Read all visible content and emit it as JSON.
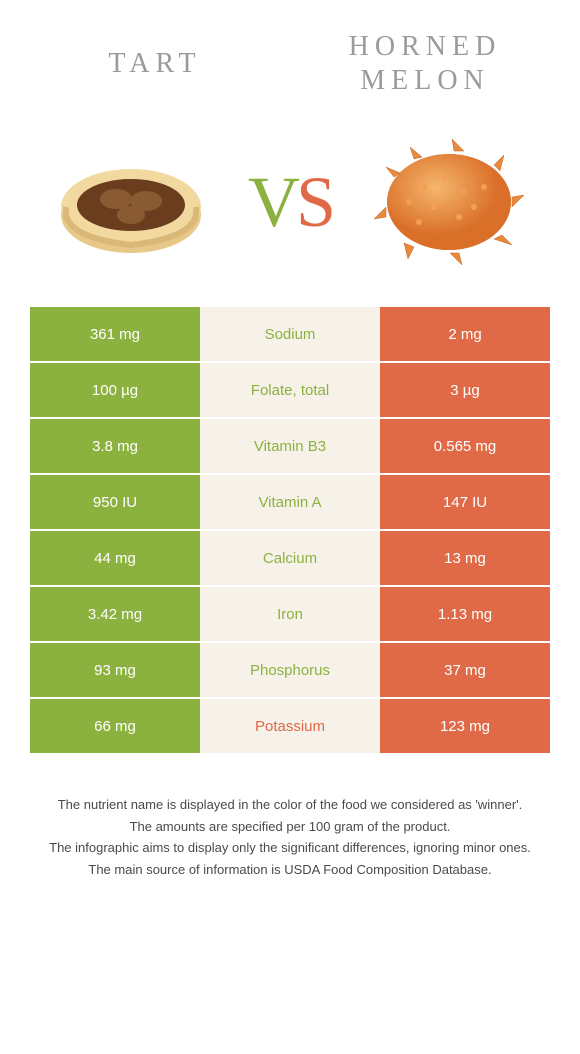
{
  "titles": {
    "left": "Tart",
    "right": "Horned melon"
  },
  "vs": {
    "v": "V",
    "s": "S"
  },
  "colors": {
    "green": "#8bb23f",
    "orange": "#e06a48",
    "cream": "#f7f2e9",
    "titleGrey": "#9b9b9b",
    "footerText": "#4a4a4a"
  },
  "rows": [
    {
      "left": "361 mg",
      "label": "Sodium",
      "right": "2 mg",
      "winner": "left"
    },
    {
      "left": "100 µg",
      "label": "Folate, total",
      "right": "3 µg",
      "winner": "left"
    },
    {
      "left": "3.8 mg",
      "label": "Vitamin B3",
      "right": "0.565 mg",
      "winner": "left"
    },
    {
      "left": "950 IU",
      "label": "Vitamin A",
      "right": "147 IU",
      "winner": "left"
    },
    {
      "left": "44 mg",
      "label": "Calcium",
      "right": "13 mg",
      "winner": "left"
    },
    {
      "left": "3.42 mg",
      "label": "Iron",
      "right": "1.13 mg",
      "winner": "left"
    },
    {
      "left": "93 mg",
      "label": "Phosphorus",
      "right": "37 mg",
      "winner": "left"
    },
    {
      "left": "66 mg",
      "label": "Potassium",
      "right": "123 mg",
      "winner": "right"
    }
  ],
  "footer": [
    "The nutrient name is displayed in the color of the food we considered as 'winner'.",
    "The amounts are specified per 100 gram of the product.",
    "The infographic aims to display only the significant differences, ignoring minor ones.",
    "The main source of information is USDA Food Composition Database."
  ]
}
